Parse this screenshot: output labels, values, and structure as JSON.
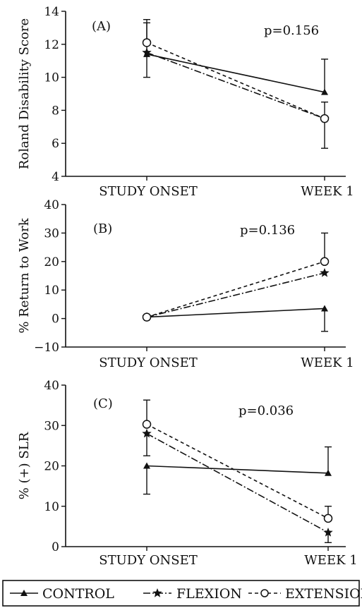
{
  "chart_data": [
    {
      "type": "line",
      "panel_label": "(A)",
      "annotation": "p=0.156",
      "ylabel": "Roland Disability Score",
      "categories": [
        "STUDY ONSET",
        "WEEK 1"
      ],
      "ylim": [
        4,
        14
      ],
      "yticks": [
        4,
        6,
        8,
        10,
        12,
        14
      ],
      "series": [
        {
          "name": "CONTROL",
          "values": [
            11.4,
            9.1
          ],
          "error_up": [
            null,
            2.0
          ],
          "error_down": [
            1.4,
            null
          ]
        },
        {
          "name": "FLEXION",
          "values": [
            11.5,
            7.5
          ],
          "error_up": [
            1.8,
            null
          ],
          "error_down": [
            null,
            null
          ]
        },
        {
          "name": "EXTENSION",
          "values": [
            12.1,
            7.5
          ],
          "error_up": [
            1.4,
            1.0
          ],
          "error_down": [
            null,
            1.8
          ]
        }
      ]
    },
    {
      "type": "line",
      "panel_label": "(B)",
      "annotation": "p=0.136",
      "ylabel": "% Return to Work",
      "categories": [
        "STUDY ONSET",
        "WEEK 1"
      ],
      "ylim": [
        -10,
        40
      ],
      "yticks": [
        -10,
        0,
        10,
        20,
        30,
        40
      ],
      "series": [
        {
          "name": "CONTROL",
          "values": [
            0.5,
            3.5
          ],
          "error_up": [
            null,
            null
          ],
          "error_down": [
            null,
            8
          ]
        },
        {
          "name": "FLEXION",
          "values": [
            0.5,
            16
          ],
          "error_up": [
            null,
            null
          ],
          "error_down": [
            null,
            null
          ]
        },
        {
          "name": "EXTENSION",
          "values": [
            0.5,
            20
          ],
          "error_up": [
            null,
            10
          ],
          "error_down": [
            null,
            null
          ]
        }
      ]
    },
    {
      "type": "line",
      "panel_label": "(C)",
      "annotation": "p=0.036",
      "ylabel": "% (+) SLR",
      "categories": [
        "STUDY ONSET",
        "WEEK 1"
      ],
      "ylim": [
        0,
        40
      ],
      "yticks": [
        0,
        10,
        20,
        30,
        40
      ],
      "series": [
        {
          "name": "CONTROL",
          "values": [
            20,
            18.2
          ],
          "error_up": [
            null,
            6.5
          ],
          "error_down": [
            7,
            null
          ]
        },
        {
          "name": "FLEXION",
          "values": [
            28,
            3.5
          ],
          "error_up": [
            null,
            null
          ],
          "error_down": [
            5.5,
            2.5
          ]
        },
        {
          "name": "EXTENSION",
          "values": [
            30.3,
            7
          ],
          "error_up": [
            6,
            3
          ],
          "error_down": [
            null,
            null
          ]
        }
      ]
    }
  ],
  "legend": [
    "CONTROL",
    "FLEXION",
    "EXTENSION"
  ],
  "colors": {
    "ink": "#111111",
    "background": "#ffffff"
  }
}
